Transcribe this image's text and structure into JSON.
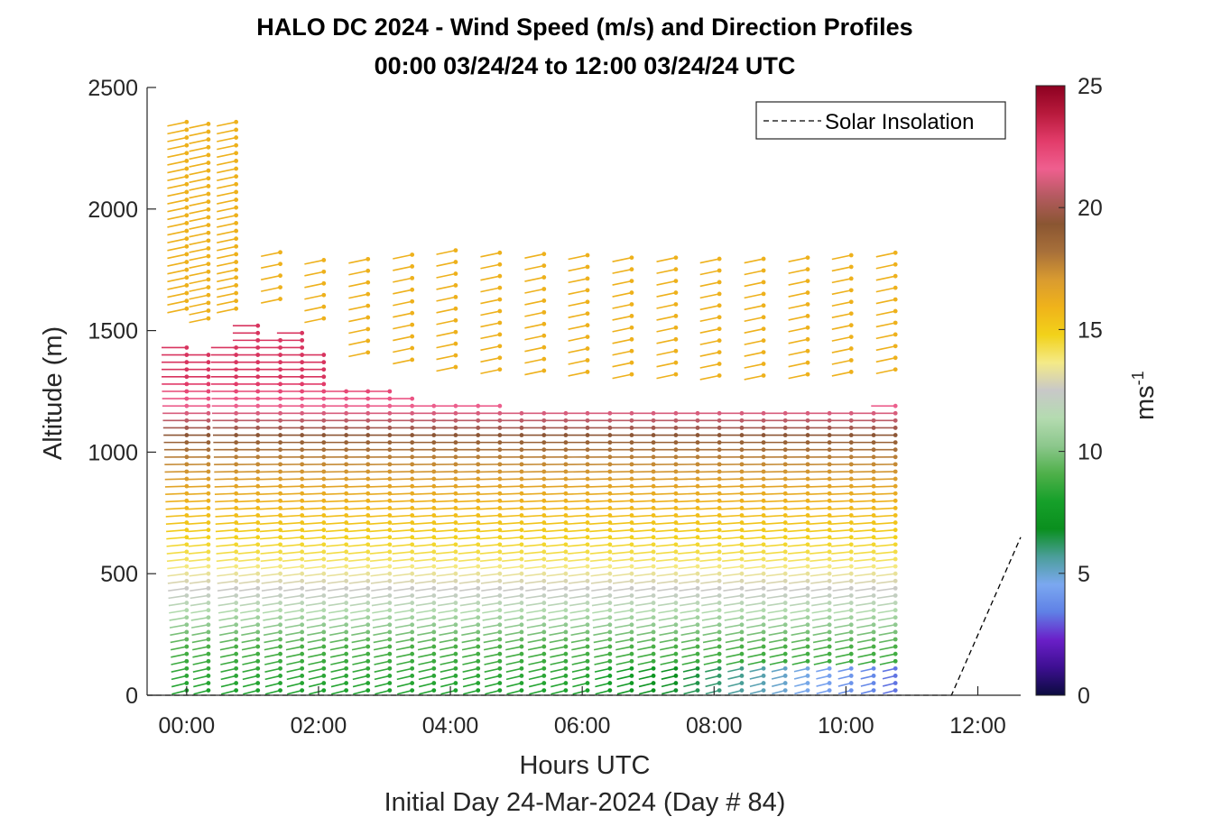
{
  "chart_data": {
    "type": "scatter",
    "title": "HALO DC 2024 - Wind Speed (m/s) and Direction Profiles",
    "subtitle": "00:00 03/24/24 to 12:00 03/24/24  UTC",
    "xlabel": "Hours UTC",
    "xlabel_secondary": "Initial Day 24-Mar-2024 (Day # 84)",
    "ylabel": "Altitude (m)",
    "xlim_hours": [
      -0.6,
      12.65
    ],
    "ylim": [
      0,
      2500
    ],
    "x_ticks": [
      {
        "value": 0,
        "label": "00:00"
      },
      {
        "value": 2,
        "label": "02:00"
      },
      {
        "value": 4,
        "label": "04:00"
      },
      {
        "value": 6,
        "label": "06:00"
      },
      {
        "value": 8,
        "label": "08:00"
      },
      {
        "value": 10,
        "label": "10:00"
      },
      {
        "value": 12,
        "label": "12:00"
      }
    ],
    "y_ticks": [
      {
        "value": 0,
        "label": "0"
      },
      {
        "value": 500,
        "label": "500"
      },
      {
        "value": 1000,
        "label": "1000"
      },
      {
        "value": 1500,
        "label": "1500"
      },
      {
        "value": 2000,
        "label": "2000"
      },
      {
        "value": 2500,
        "label": "2500"
      }
    ],
    "colorbar": {
      "label": "ms",
      "label_superscript": "-1",
      "range": [
        0,
        25
      ],
      "ticks": [
        {
          "value": 0,
          "label": "0"
        },
        {
          "value": 5,
          "label": "5"
        },
        {
          "value": 10,
          "label": "10"
        },
        {
          "value": 15,
          "label": "15"
        },
        {
          "value": 20,
          "label": "20"
        },
        {
          "value": 25,
          "label": "25"
        }
      ],
      "colors": [
        "#0b0b3f",
        "#3d0f91",
        "#6a1fc8",
        "#5f80e6",
        "#7ba8f0",
        "#4b9e9a",
        "#0a8f1e",
        "#16a02a",
        "#4fb04a",
        "#8cc78c",
        "#b4dbb0",
        "#c8c8c8",
        "#f4ea88",
        "#f2d21a",
        "#f0b31a",
        "#d99b30",
        "#a8703a",
        "#8a5632",
        "#b45a60",
        "#ef5f8f",
        "#e23c6a",
        "#b81a3c",
        "#8c0020"
      ]
    },
    "legend": {
      "label": "Solar Insolation",
      "placement": "top-right",
      "style": "dashed",
      "color": "#000000"
    },
    "solar_insolation": {
      "x": [
        -0.6,
        11.6,
        12.65
      ],
      "y": [
        0,
        0,
        650
      ]
    },
    "series": [
      {
        "times_hours": [
          0.0,
          0.33,
          0.75,
          1.08,
          1.42,
          1.75,
          2.08,
          2.42,
          2.75,
          3.08,
          3.42,
          3.75,
          4.08,
          4.42,
          4.75,
          5.08,
          5.42,
          5.75,
          6.08,
          6.42,
          6.75,
          7.08,
          7.42,
          7.75,
          8.08,
          8.42,
          8.75,
          9.08,
          9.42,
          9.75,
          10.08,
          10.42,
          10.75
        ],
        "boundary_layer_top_m": [
          1440,
          1400,
          1440,
          1520,
          1480,
          1510,
          1400,
          1270,
          1260,
          1250,
          1230,
          1210,
          1200,
          1195,
          1190,
          1185,
          1185,
          1180,
          1180,
          1175,
          1170,
          1170,
          1170,
          1165,
          1165,
          1165,
          1165,
          1170,
          1170,
          1175,
          1180,
          1185,
          1190
        ],
        "wind_from_deg_surface": 240,
        "wind_from_deg_aloft": 270,
        "speed_ms_profile": [
          {
            "altitude_m": 0,
            "speed": 8
          },
          {
            "altitude_m": 200,
            "speed": 9
          },
          {
            "altitude_m": 400,
            "speed": 12
          },
          {
            "altitude_m": 550,
            "speed": 14
          },
          {
            "altitude_m": 800,
            "speed": 16
          },
          {
            "altitude_m": 1000,
            "speed": 18
          },
          {
            "altitude_m": 1150,
            "speed": 21
          },
          {
            "altitude_m": 1300,
            "speed": 23
          }
        ],
        "late_surface_speed_ms": 3,
        "upper_layer_speed_ms": 16
      }
    ]
  }
}
